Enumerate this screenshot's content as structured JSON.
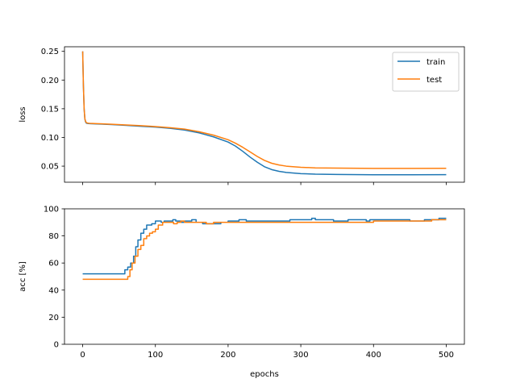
{
  "chart_data": [
    {
      "type": "line",
      "xlabel": "",
      "ylabel": "loss",
      "xlim": [
        -25,
        525
      ],
      "ylim": [
        0.022,
        0.258
      ],
      "xticks": [
        0,
        100,
        200,
        300,
        400,
        500
      ],
      "xtick_labels_visible": false,
      "yticks": [
        0.05,
        0.1,
        0.15,
        0.2,
        0.25
      ],
      "ytick_labels": [
        "0.05",
        "0.10",
        "0.15",
        "0.20",
        "0.25"
      ],
      "grid": false,
      "legend": {
        "placement": "top-right",
        "entries": [
          "train",
          "test"
        ]
      },
      "series": [
        {
          "name": "train",
          "color": "#1f77b4",
          "x": [
            0,
            1,
            2,
            3,
            4,
            5,
            6,
            8,
            10,
            20,
            40,
            60,
            80,
            100,
            120,
            140,
            160,
            180,
            200,
            210,
            220,
            230,
            240,
            250,
            260,
            270,
            280,
            300,
            320,
            350,
            400,
            450,
            500
          ],
          "y": [
            0.25,
            0.19,
            0.15,
            0.132,
            0.127,
            0.125,
            0.1245,
            0.1242,
            0.124,
            0.1235,
            0.1225,
            0.121,
            0.1195,
            0.118,
            0.116,
            0.113,
            0.108,
            0.101,
            0.092,
            0.085,
            0.076,
            0.066,
            0.057,
            0.049,
            0.044,
            0.041,
            0.039,
            0.037,
            0.036,
            0.0355,
            0.035,
            0.035,
            0.0352
          ]
        },
        {
          "name": "test",
          "color": "#ff7f0e",
          "x": [
            0,
            1,
            2,
            3,
            4,
            5,
            6,
            8,
            10,
            20,
            40,
            60,
            80,
            100,
            120,
            140,
            160,
            180,
            200,
            210,
            220,
            230,
            240,
            250,
            260,
            270,
            280,
            300,
            320,
            350,
            400,
            450,
            500
          ],
          "y": [
            0.25,
            0.19,
            0.15,
            0.133,
            0.128,
            0.126,
            0.1252,
            0.1248,
            0.1245,
            0.124,
            0.123,
            0.1218,
            0.1205,
            0.119,
            0.117,
            0.1145,
            0.11,
            0.104,
            0.096,
            0.09,
            0.083,
            0.075,
            0.067,
            0.06,
            0.055,
            0.052,
            0.05,
            0.048,
            0.047,
            0.0465,
            0.046,
            0.046,
            0.0462
          ]
        }
      ]
    },
    {
      "type": "line",
      "xlabel": "epochs",
      "ylabel": "acc [%]",
      "xlim": [
        -25,
        525
      ],
      "ylim": [
        0,
        100
      ],
      "xticks": [
        0,
        100,
        200,
        300,
        400,
        500
      ],
      "xtick_labels": [
        "0",
        "100",
        "200",
        "300",
        "400",
        "500"
      ],
      "yticks": [
        0,
        20,
        40,
        60,
        80,
        100
      ],
      "ytick_labels": [
        "0",
        "20",
        "40",
        "60",
        "80",
        "100"
      ],
      "grid": false,
      "step": true,
      "series": [
        {
          "name": "train",
          "color": "#1f77b4",
          "x": [
            0,
            55,
            58,
            62,
            66,
            70,
            73,
            76,
            80,
            84,
            88,
            95,
            100,
            104,
            108,
            112,
            118,
            124,
            128,
            130,
            135,
            140,
            150,
            156,
            165,
            175,
            190,
            200,
            205,
            215,
            225,
            240,
            260,
            285,
            300,
            315,
            320,
            325,
            345,
            360,
            365,
            380,
            390,
            395,
            420,
            450,
            470,
            490,
            500
          ],
          "y": [
            52,
            52,
            55,
            57,
            60,
            65,
            72,
            77,
            82,
            85,
            88,
            89,
            91,
            91,
            90,
            91,
            91,
            92,
            91,
            91,
            90,
            91,
            92,
            90,
            89,
            89,
            90,
            91,
            91,
            92,
            91,
            91,
            91,
            92,
            92,
            93,
            92,
            92,
            91,
            91,
            92,
            92,
            91,
            92,
            92,
            91,
            92,
            93,
            93
          ]
        },
        {
          "name": "test",
          "color": "#ff7f0e",
          "x": [
            0,
            58,
            62,
            65,
            68,
            72,
            76,
            80,
            84,
            88,
            92,
            96,
            100,
            104,
            110,
            120,
            125,
            130,
            135,
            140,
            160,
            170,
            180,
            200,
            220,
            260,
            300,
            360,
            400,
            460,
            480,
            500
          ],
          "y": [
            48,
            48,
            50,
            55,
            60,
            65,
            70,
            73,
            78,
            80,
            82,
            83,
            85,
            88,
            90,
            90,
            89,
            90,
            91,
            90,
            90,
            89,
            90,
            90,
            90,
            90,
            90,
            90,
            91,
            91,
            92,
            92
          ]
        }
      ]
    }
  ]
}
